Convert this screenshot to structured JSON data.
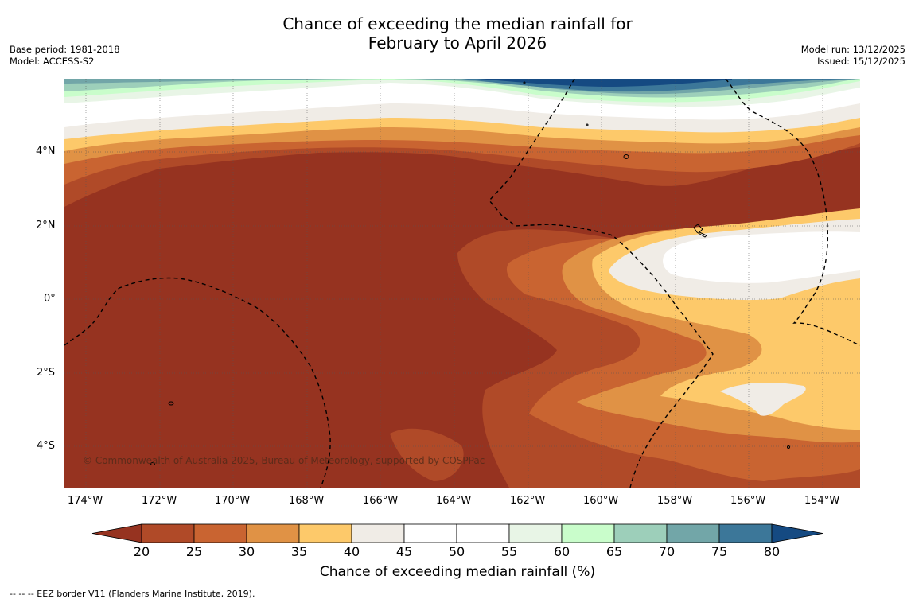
{
  "title": {
    "line1": "Chance of exceeding the median rainfall for",
    "line2": "February to April 2026"
  },
  "meta_left": {
    "base_period": "Base period: 1981-2018",
    "model": "Model: ACCESS-S2"
  },
  "meta_right": {
    "model_run": "Model run: 13/12/2025",
    "issued": "Issued: 15/12/2025"
  },
  "axes": {
    "lat_labels": [
      "4°N",
      "2°N",
      "0°",
      "2°S",
      "4°S"
    ],
    "lon_labels": [
      "174°W",
      "172°W",
      "170°W",
      "168°W",
      "166°W",
      "164°W",
      "162°W",
      "160°W",
      "158°W",
      "156°W",
      "154°W"
    ]
  },
  "copyright": "© Commonwealth of Australia 2025, Bureau of Meteorology, supported by COSPPac",
  "colorbar": {
    "label": "Chance of exceeding median rainfall (%)",
    "ticks": [
      "20",
      "25",
      "30",
      "35",
      "40",
      "45",
      "50",
      "55",
      "60",
      "65",
      "70",
      "75",
      "80"
    ],
    "colors": [
      "#963320",
      "#b04a28",
      "#c96431",
      "#e09245",
      "#fdc96a",
      "#f0ece6",
      "#ffffff",
      "#ffffff",
      "#e8f5e6",
      "#c9fdcb",
      "#9dcfba",
      "#72a6a8",
      "#3c7799",
      "#154a82"
    ]
  },
  "footnote": "--  --  -- EEZ border V11 (Flanders Marine Institute, 2019)."
}
